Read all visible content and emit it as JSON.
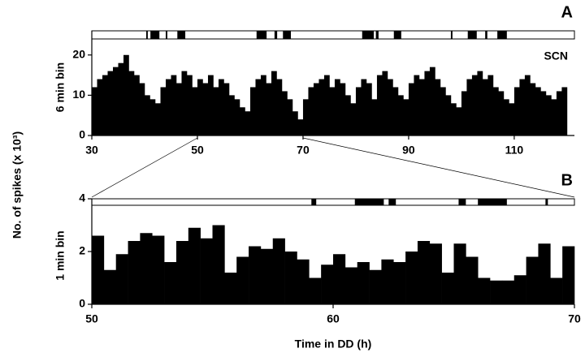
{
  "figure": {
    "ylabel": "No. of spikes (x 10³)",
    "xlabel": "Time in DD (h)"
  },
  "chart_data": [
    {
      "type": "bar",
      "panel": "A",
      "annotation": "SCN",
      "ylabel": "6 min bin",
      "color": "#000000",
      "x": [
        30,
        31,
        32,
        33,
        34,
        35,
        36,
        37,
        38,
        39,
        40,
        41,
        42,
        43,
        44,
        45,
        46,
        47,
        48,
        49,
        50,
        51,
        52,
        53,
        54,
        55,
        56,
        57,
        58,
        59,
        60,
        61,
        62,
        63,
        64,
        65,
        66,
        67,
        68,
        69,
        70,
        71,
        72,
        73,
        74,
        75,
        76,
        77,
        78,
        79,
        80,
        81,
        82,
        83,
        84,
        85,
        86,
        87,
        88,
        89,
        90,
        91,
        92,
        93,
        94,
        95,
        96,
        97,
        98,
        99,
        100,
        101,
        102,
        103,
        104,
        105,
        106,
        107,
        108,
        109,
        110,
        111,
        112,
        113,
        114,
        115,
        116,
        117,
        118,
        119
      ],
      "values": [
        12,
        14,
        15,
        16,
        17,
        18,
        20,
        16,
        15,
        13,
        10,
        9,
        8,
        12,
        14,
        15,
        13,
        16,
        15,
        12,
        14,
        13,
        15,
        12,
        14,
        13,
        10,
        9,
        7,
        6,
        12,
        14,
        15,
        13,
        16,
        14,
        11,
        9,
        6,
        4,
        9,
        12,
        13,
        14,
        15,
        12,
        14,
        13,
        10,
        8,
        12,
        14,
        13,
        9,
        15,
        16,
        14,
        12,
        10,
        9,
        13,
        15,
        14,
        16,
        17,
        14,
        12,
        10,
        8,
        7,
        11,
        14,
        15,
        16,
        14,
        15,
        12,
        11,
        9,
        8,
        12,
        14,
        15,
        13,
        12,
        11,
        10,
        9,
        11,
        12
      ],
      "activity_blocks": [
        [
          40.3,
          40.6
        ],
        [
          41.1,
          42.8
        ],
        [
          44.0,
          44.3
        ],
        [
          46.2,
          47.7
        ],
        [
          61.2,
          63.1
        ],
        [
          64.6,
          65.1
        ],
        [
          66.2,
          67.7
        ],
        [
          81.2,
          83.4
        ],
        [
          83.8,
          84.3
        ],
        [
          87.2,
          88.6
        ],
        [
          98.0,
          98.3
        ],
        [
          101.2,
          102.9
        ],
        [
          104.5,
          104.9
        ],
        [
          106.8,
          108.6
        ]
      ],
      "xlim": [
        30,
        121.4
      ],
      "xticks": [
        30,
        50,
        70,
        90,
        110
      ],
      "ylim": [
        0,
        26
      ],
      "yticks": [
        0,
        10,
        20
      ]
    },
    {
      "type": "bar",
      "panel": "B",
      "ylabel": "1 min bin",
      "color": "#000000",
      "x": [
        50,
        50.5,
        51,
        51.5,
        52,
        52.5,
        53,
        53.5,
        54,
        54.5,
        55,
        55.5,
        56,
        56.5,
        57,
        57.5,
        58,
        58.5,
        59,
        59.5,
        60,
        60.5,
        61,
        61.5,
        62,
        62.5,
        63,
        63.5,
        64,
        64.5,
        65,
        65.5,
        66,
        66.5,
        67,
        67.5,
        68,
        68.5,
        69,
        69.5
      ],
      "values": [
        2.6,
        1.3,
        1.9,
        2.4,
        2.7,
        2.6,
        1.6,
        2.4,
        2.9,
        2.5,
        3.0,
        1.2,
        1.8,
        2.2,
        2.1,
        2.5,
        2.0,
        1.7,
        1.0,
        1.5,
        1.9,
        1.4,
        1.6,
        1.3,
        1.7,
        1.6,
        2.0,
        2.4,
        2.3,
        1.2,
        2.3,
        1.8,
        1.0,
        0.9,
        0.9,
        1.1,
        1.8,
        2.3,
        1.0,
        2.2
      ],
      "activity_blocks": [
        [
          59.1,
          59.3
        ],
        [
          60.9,
          62.1
        ],
        [
          62.3,
          62.6
        ],
        [
          65.2,
          65.5
        ],
        [
          66.0,
          67.2
        ],
        [
          68.8,
          68.9
        ]
      ],
      "xlim": [
        50,
        70
      ],
      "xticks": [
        50,
        60,
        70
      ],
      "ylim": [
        0,
        4
      ],
      "yticks": [
        0,
        2,
        4
      ]
    }
  ]
}
